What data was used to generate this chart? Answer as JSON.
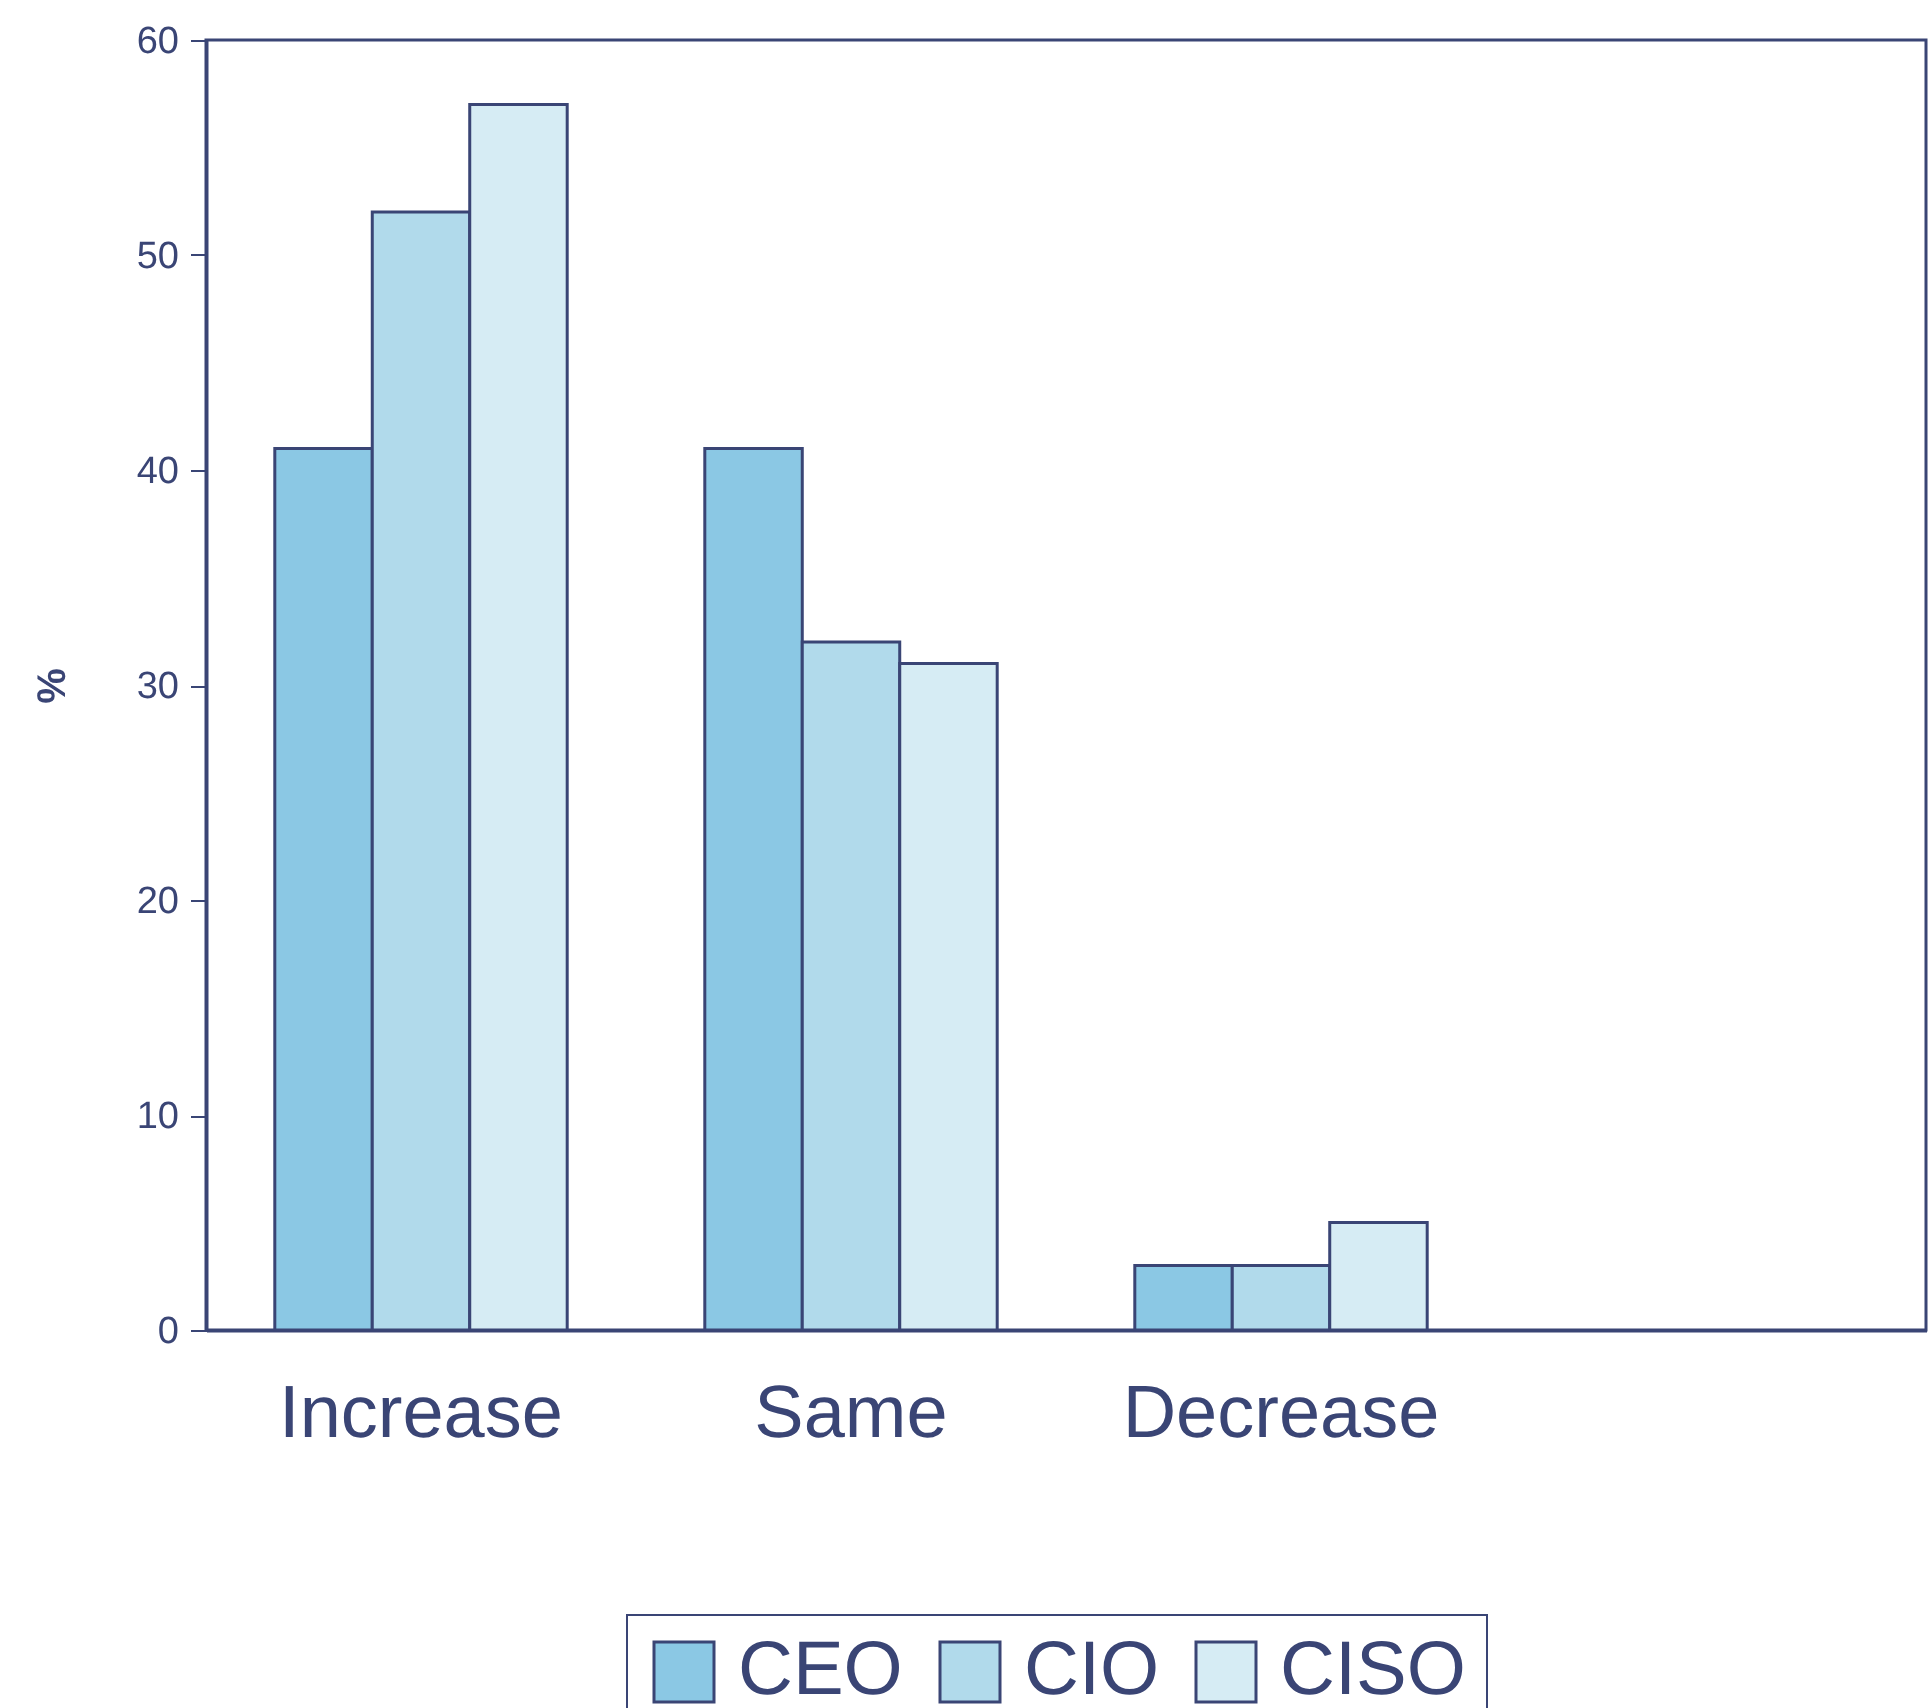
{
  "chart_data": {
    "type": "bar",
    "ylabel": "%",
    "categories": [
      "Increase",
      "Same",
      "Decrease",
      null
    ],
    "series": [
      {
        "name": "CEO",
        "color": "#8bc8e4",
        "values": [
          41,
          41,
          3,
          null
        ]
      },
      {
        "name": "CIO",
        "color": "#b1daeb",
        "values": [
          52,
          32,
          3,
          null
        ]
      },
      {
        "name": "CISO",
        "color": "#d6ecf4",
        "values": [
          57,
          31,
          5,
          null
        ]
      }
    ],
    "ylim": [
      0,
      60
    ],
    "yticks": [
      0,
      10,
      20,
      30,
      40,
      50,
      60
    ],
    "grid": false,
    "legend": "bottom"
  }
}
